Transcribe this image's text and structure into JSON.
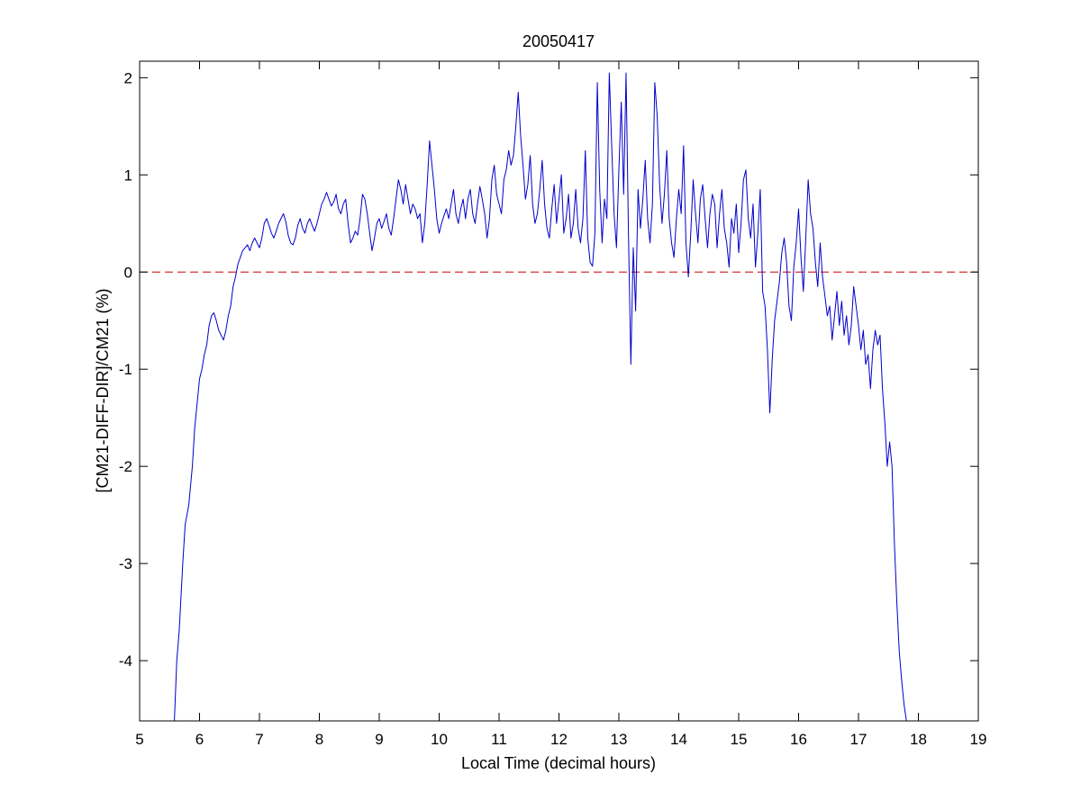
{
  "chart_data": {
    "type": "line",
    "title": "20050417",
    "xlabel": "Local Time (decimal hours)",
    "ylabel": "[CM21-DIFF-DIR]/CM21 (%)",
    "xlim": [
      5,
      19
    ],
    "ylim": [
      -4.62,
      2.17
    ],
    "xticks": [
      5,
      6,
      7,
      8,
      9,
      10,
      11,
      12,
      13,
      14,
      15,
      16,
      17,
      18,
      19
    ],
    "yticks": [
      2,
      1,
      0,
      -1,
      -2,
      -3,
      -4
    ],
    "grid": false,
    "legend": "none",
    "reference_line": {
      "y": 0,
      "style": "dashed",
      "color": "#cc0000"
    },
    "series": [
      {
        "color": "#0000cc",
        "points": [
          [
            5.58,
            -4.62
          ],
          [
            5.62,
            -4.0
          ],
          [
            5.66,
            -3.7
          ],
          [
            5.72,
            -3.0
          ],
          [
            5.76,
            -2.6
          ],
          [
            5.82,
            -2.4
          ],
          [
            5.88,
            -2.0
          ],
          [
            5.92,
            -1.6
          ],
          [
            5.96,
            -1.35
          ],
          [
            6.0,
            -1.1
          ],
          [
            6.04,
            -1.0
          ],
          [
            6.08,
            -0.85
          ],
          [
            6.12,
            -0.75
          ],
          [
            6.16,
            -0.55
          ],
          [
            6.2,
            -0.45
          ],
          [
            6.24,
            -0.42
          ],
          [
            6.28,
            -0.5
          ],
          [
            6.32,
            -0.6
          ],
          [
            6.36,
            -0.65
          ],
          [
            6.4,
            -0.7
          ],
          [
            6.44,
            -0.6
          ],
          [
            6.48,
            -0.45
          ],
          [
            6.52,
            -0.35
          ],
          [
            6.56,
            -0.15
          ],
          [
            6.6,
            -0.05
          ],
          [
            6.64,
            0.08
          ],
          [
            6.68,
            0.15
          ],
          [
            6.72,
            0.22
          ],
          [
            6.76,
            0.25
          ],
          [
            6.8,
            0.28
          ],
          [
            6.84,
            0.22
          ],
          [
            6.88,
            0.3
          ],
          [
            6.92,
            0.35
          ],
          [
            6.96,
            0.3
          ],
          [
            7.0,
            0.25
          ],
          [
            7.04,
            0.35
          ],
          [
            7.08,
            0.5
          ],
          [
            7.12,
            0.55
          ],
          [
            7.16,
            0.48
          ],
          [
            7.2,
            0.4
          ],
          [
            7.24,
            0.35
          ],
          [
            7.28,
            0.42
          ],
          [
            7.32,
            0.5
          ],
          [
            7.36,
            0.55
          ],
          [
            7.4,
            0.6
          ],
          [
            7.44,
            0.52
          ],
          [
            7.48,
            0.38
          ],
          [
            7.52,
            0.3
          ],
          [
            7.56,
            0.28
          ],
          [
            7.6,
            0.35
          ],
          [
            7.64,
            0.48
          ],
          [
            7.68,
            0.55
          ],
          [
            7.72,
            0.45
          ],
          [
            7.76,
            0.4
          ],
          [
            7.8,
            0.5
          ],
          [
            7.84,
            0.55
          ],
          [
            7.88,
            0.48
          ],
          [
            7.92,
            0.42
          ],
          [
            7.96,
            0.5
          ],
          [
            8.0,
            0.6
          ],
          [
            8.04,
            0.7
          ],
          [
            8.08,
            0.75
          ],
          [
            8.12,
            0.82
          ],
          [
            8.16,
            0.75
          ],
          [
            8.2,
            0.68
          ],
          [
            8.24,
            0.72
          ],
          [
            8.28,
            0.8
          ],
          [
            8.32,
            0.65
          ],
          [
            8.36,
            0.6
          ],
          [
            8.4,
            0.7
          ],
          [
            8.44,
            0.75
          ],
          [
            8.48,
            0.5
          ],
          [
            8.52,
            0.3
          ],
          [
            8.56,
            0.35
          ],
          [
            8.6,
            0.42
          ],
          [
            8.64,
            0.38
          ],
          [
            8.68,
            0.55
          ],
          [
            8.72,
            0.8
          ],
          [
            8.76,
            0.75
          ],
          [
            8.8,
            0.6
          ],
          [
            8.84,
            0.4
          ],
          [
            8.88,
            0.22
          ],
          [
            8.92,
            0.35
          ],
          [
            8.96,
            0.5
          ],
          [
            9.0,
            0.55
          ],
          [
            9.04,
            0.45
          ],
          [
            9.08,
            0.52
          ],
          [
            9.12,
            0.6
          ],
          [
            9.16,
            0.45
          ],
          [
            9.2,
            0.38
          ],
          [
            9.24,
            0.55
          ],
          [
            9.28,
            0.75
          ],
          [
            9.32,
            0.95
          ],
          [
            9.36,
            0.85
          ],
          [
            9.4,
            0.7
          ],
          [
            9.44,
            0.9
          ],
          [
            9.48,
            0.75
          ],
          [
            9.52,
            0.6
          ],
          [
            9.56,
            0.7
          ],
          [
            9.6,
            0.65
          ],
          [
            9.64,
            0.55
          ],
          [
            9.68,
            0.6
          ],
          [
            9.72,
            0.3
          ],
          [
            9.76,
            0.5
          ],
          [
            9.8,
            0.9
          ],
          [
            9.84,
            1.35
          ],
          [
            9.88,
            1.1
          ],
          [
            9.92,
            0.85
          ],
          [
            9.96,
            0.55
          ],
          [
            10.0,
            0.4
          ],
          [
            10.04,
            0.5
          ],
          [
            10.08,
            0.58
          ],
          [
            10.12,
            0.65
          ],
          [
            10.16,
            0.55
          ],
          [
            10.2,
            0.7
          ],
          [
            10.24,
            0.85
          ],
          [
            10.28,
            0.6
          ],
          [
            10.32,
            0.5
          ],
          [
            10.36,
            0.65
          ],
          [
            10.4,
            0.75
          ],
          [
            10.44,
            0.55
          ],
          [
            10.48,
            0.75
          ],
          [
            10.52,
            0.85
          ],
          [
            10.56,
            0.6
          ],
          [
            10.6,
            0.5
          ],
          [
            10.64,
            0.7
          ],
          [
            10.68,
            0.88
          ],
          [
            10.72,
            0.75
          ],
          [
            10.76,
            0.6
          ],
          [
            10.8,
            0.35
          ],
          [
            10.84,
            0.55
          ],
          [
            10.88,
            0.95
          ],
          [
            10.92,
            1.1
          ],
          [
            10.96,
            0.8
          ],
          [
            11.0,
            0.7
          ],
          [
            11.04,
            0.6
          ],
          [
            11.08,
            0.95
          ],
          [
            11.12,
            1.05
          ],
          [
            11.16,
            1.25
          ],
          [
            11.2,
            1.1
          ],
          [
            11.24,
            1.2
          ],
          [
            11.28,
            1.5
          ],
          [
            11.32,
            1.85
          ],
          [
            11.36,
            1.4
          ],
          [
            11.4,
            1.1
          ],
          [
            11.44,
            0.75
          ],
          [
            11.48,
            0.9
          ],
          [
            11.52,
            1.2
          ],
          [
            11.56,
            0.7
          ],
          [
            11.6,
            0.5
          ],
          [
            11.64,
            0.6
          ],
          [
            11.68,
            0.85
          ],
          [
            11.72,
            1.15
          ],
          [
            11.76,
            0.7
          ],
          [
            11.8,
            0.45
          ],
          [
            11.84,
            0.35
          ],
          [
            11.88,
            0.65
          ],
          [
            11.92,
            0.9
          ],
          [
            11.96,
            0.5
          ],
          [
            12.0,
            0.75
          ],
          [
            12.04,
            1.0
          ],
          [
            12.08,
            0.4
          ],
          [
            12.12,
            0.55
          ],
          [
            12.16,
            0.8
          ],
          [
            12.2,
            0.35
          ],
          [
            12.24,
            0.5
          ],
          [
            12.28,
            0.85
          ],
          [
            12.32,
            0.45
          ],
          [
            12.36,
            0.3
          ],
          [
            12.4,
            0.55
          ],
          [
            12.44,
            1.25
          ],
          [
            12.48,
            0.35
          ],
          [
            12.52,
            0.1
          ],
          [
            12.56,
            0.06
          ],
          [
            12.6,
            0.4
          ],
          [
            12.64,
            1.95
          ],
          [
            12.68,
            0.85
          ],
          [
            12.72,
            0.3
          ],
          [
            12.76,
            0.75
          ],
          [
            12.8,
            0.55
          ],
          [
            12.84,
            2.05
          ],
          [
            12.88,
            1.3
          ],
          [
            12.92,
            0.6
          ],
          [
            12.96,
            0.25
          ],
          [
            13.0,
            1.05
          ],
          [
            13.04,
            1.75
          ],
          [
            13.08,
            0.8
          ],
          [
            13.12,
            2.05
          ],
          [
            13.16,
            0.4
          ],
          [
            13.2,
            -0.95
          ],
          [
            13.24,
            0.25
          ],
          [
            13.28,
            -0.4
          ],
          [
            13.32,
            0.85
          ],
          [
            13.36,
            0.45
          ],
          [
            13.4,
            0.75
          ],
          [
            13.44,
            1.15
          ],
          [
            13.48,
            0.55
          ],
          [
            13.52,
            0.3
          ],
          [
            13.56,
            0.7
          ],
          [
            13.6,
            1.95
          ],
          [
            13.64,
            1.6
          ],
          [
            13.68,
            0.9
          ],
          [
            13.72,
            0.5
          ],
          [
            13.76,
            0.8
          ],
          [
            13.8,
            1.25
          ],
          [
            13.84,
            0.55
          ],
          [
            13.88,
            0.3
          ],
          [
            13.92,
            0.15
          ],
          [
            13.96,
            0.55
          ],
          [
            14.0,
            0.85
          ],
          [
            14.04,
            0.6
          ],
          [
            14.08,
            1.3
          ],
          [
            14.12,
            0.3
          ],
          [
            14.16,
            -0.05
          ],
          [
            14.2,
            0.4
          ],
          [
            14.24,
            0.95
          ],
          [
            14.28,
            0.6
          ],
          [
            14.32,
            0.3
          ],
          [
            14.36,
            0.75
          ],
          [
            14.4,
            0.9
          ],
          [
            14.44,
            0.55
          ],
          [
            14.48,
            0.25
          ],
          [
            14.52,
            0.6
          ],
          [
            14.56,
            0.8
          ],
          [
            14.6,
            0.7
          ],
          [
            14.64,
            0.25
          ],
          [
            14.68,
            0.6
          ],
          [
            14.72,
            0.85
          ],
          [
            14.76,
            0.45
          ],
          [
            14.8,
            0.3
          ],
          [
            14.84,
            0.05
          ],
          [
            14.88,
            0.55
          ],
          [
            14.92,
            0.4
          ],
          [
            14.96,
            0.7
          ],
          [
            15.0,
            0.2
          ],
          [
            15.04,
            0.5
          ],
          [
            15.08,
            0.95
          ],
          [
            15.12,
            1.05
          ],
          [
            15.16,
            0.55
          ],
          [
            15.2,
            0.35
          ],
          [
            15.24,
            0.7
          ],
          [
            15.28,
            0.05
          ],
          [
            15.32,
            0.4
          ],
          [
            15.36,
            0.85
          ],
          [
            15.4,
            -0.2
          ],
          [
            15.44,
            -0.35
          ],
          [
            15.48,
            -0.8
          ],
          [
            15.52,
            -1.45
          ],
          [
            15.56,
            -0.9
          ],
          [
            15.6,
            -0.5
          ],
          [
            15.64,
            -0.3
          ],
          [
            15.68,
            -0.1
          ],
          [
            15.72,
            0.2
          ],
          [
            15.76,
            0.35
          ],
          [
            15.8,
            0.1
          ],
          [
            15.84,
            -0.35
          ],
          [
            15.88,
            -0.5
          ],
          [
            15.92,
            0.05
          ],
          [
            15.96,
            0.3
          ],
          [
            16.0,
            0.65
          ],
          [
            16.04,
            0.15
          ],
          [
            16.08,
            -0.2
          ],
          [
            16.12,
            0.35
          ],
          [
            16.16,
            0.95
          ],
          [
            16.2,
            0.6
          ],
          [
            16.24,
            0.45
          ],
          [
            16.28,
            0.1
          ],
          [
            16.32,
            -0.15
          ],
          [
            16.36,
            0.3
          ],
          [
            16.4,
            -0.05
          ],
          [
            16.44,
            -0.25
          ],
          [
            16.48,
            -0.45
          ],
          [
            16.52,
            -0.35
          ],
          [
            16.56,
            -0.7
          ],
          [
            16.6,
            -0.45
          ],
          [
            16.64,
            -0.2
          ],
          [
            16.68,
            -0.55
          ],
          [
            16.72,
            -0.3
          ],
          [
            16.76,
            -0.65
          ],
          [
            16.8,
            -0.45
          ],
          [
            16.84,
            -0.75
          ],
          [
            16.88,
            -0.55
          ],
          [
            16.92,
            -0.15
          ],
          [
            16.96,
            -0.35
          ],
          [
            17.0,
            -0.55
          ],
          [
            17.04,
            -0.8
          ],
          [
            17.08,
            -0.6
          ],
          [
            17.12,
            -0.95
          ],
          [
            17.16,
            -0.85
          ],
          [
            17.2,
            -1.2
          ],
          [
            17.24,
            -0.8
          ],
          [
            17.28,
            -0.6
          ],
          [
            17.32,
            -0.75
          ],
          [
            17.36,
            -0.65
          ],
          [
            17.4,
            -1.2
          ],
          [
            17.44,
            -1.55
          ],
          [
            17.48,
            -2.0
          ],
          [
            17.52,
            -1.75
          ],
          [
            17.56,
            -2.0
          ],
          [
            17.6,
            -2.8
          ],
          [
            17.64,
            -3.4
          ],
          [
            17.68,
            -3.9
          ],
          [
            17.72,
            -4.2
          ],
          [
            17.76,
            -4.45
          ],
          [
            17.8,
            -4.62
          ]
        ]
      }
    ]
  }
}
